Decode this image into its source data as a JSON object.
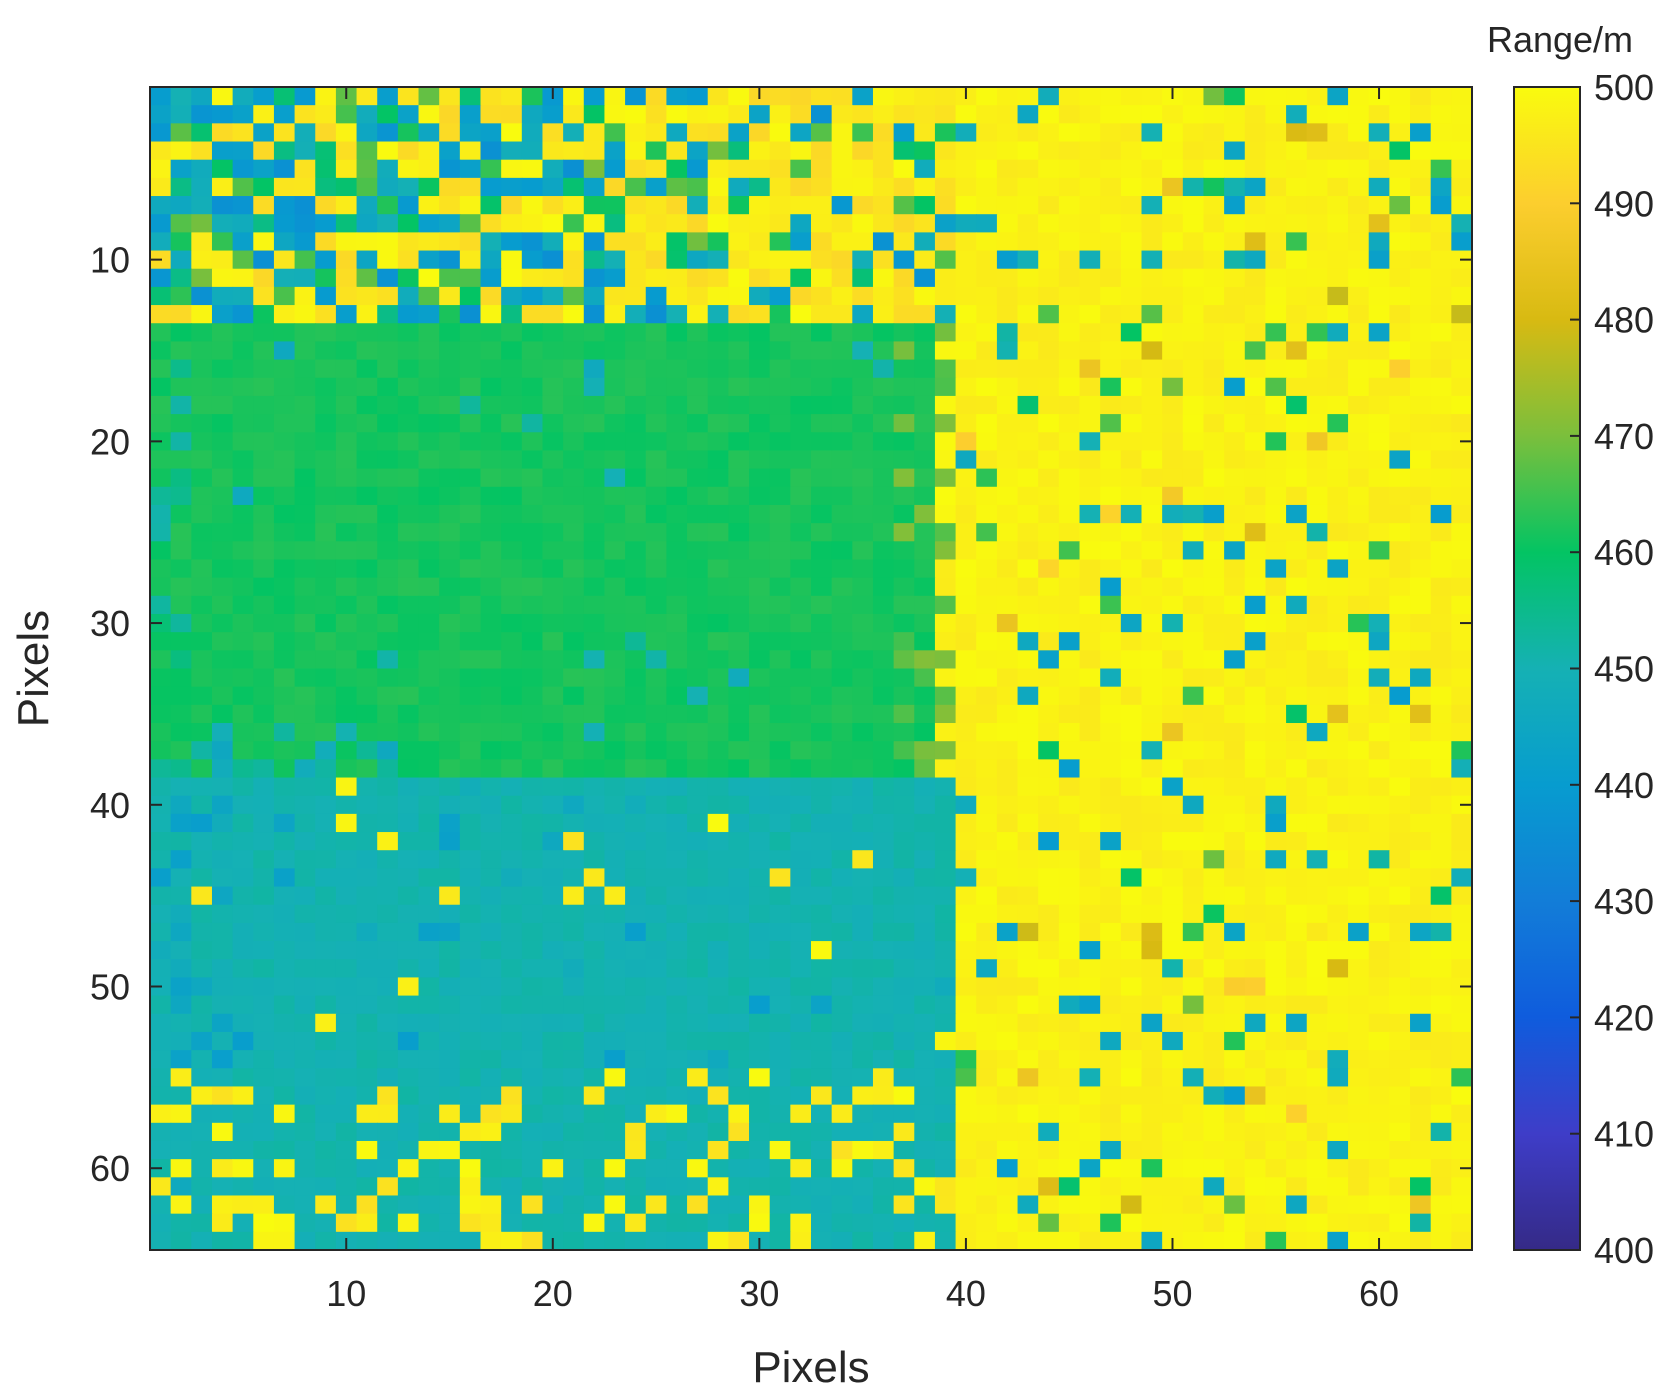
{
  "chart_data": {
    "type": "heatmap",
    "title": "",
    "xlabel": "Pixels",
    "ylabel": "Pixels",
    "colorbar_label": "Range/m",
    "grid_cols": 64,
    "grid_rows": 64,
    "xlim": [
      0.5,
      64.5
    ],
    "ylim": [
      0.5,
      64.5
    ],
    "y_direction": "reversed",
    "x_ticks": [
      10,
      20,
      30,
      40,
      50,
      60
    ],
    "y_ticks": [
      10,
      20,
      30,
      40,
      50,
      60
    ],
    "color_range": [
      400,
      500
    ],
    "colorbar_ticks": [
      400,
      410,
      420,
      430,
      440,
      450,
      460,
      470,
      480,
      490,
      500
    ],
    "colormap": "parula",
    "grid": false,
    "regions": [
      {
        "name": "near target (lower rectangle)",
        "cols": [
          1,
          39
        ],
        "rows": [
          39,
          64
        ],
        "range_m": 450
      },
      {
        "name": "middle target (upper rectangle)",
        "cols": [
          1,
          38
        ],
        "rows": [
          14,
          38
        ],
        "range_m": 461
      },
      {
        "name": "background wall",
        "cols": [
          40,
          64
        ],
        "rows": [
          1,
          64
        ],
        "range_m": 500
      },
      {
        "name": "top-left cluttered area",
        "cols": [
          1,
          38
        ],
        "rows": [
          1,
          13
        ],
        "range_m": "mixed 435-500"
      }
    ]
  }
}
